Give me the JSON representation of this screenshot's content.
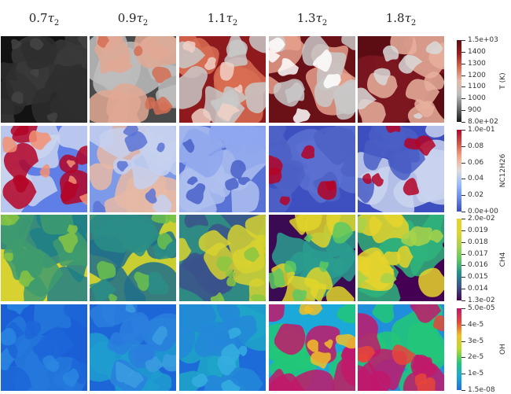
{
  "columns": [
    {
      "coef": "0.7",
      "symbol": "τ",
      "sub": "2"
    },
    {
      "coef": "0.9",
      "symbol": "τ",
      "sub": "2"
    },
    {
      "coef": "1.1",
      "symbol": "τ",
      "sub": "2"
    },
    {
      "coef": "1.3",
      "symbol": "τ",
      "sub": "2"
    },
    {
      "coef": "1.8",
      "symbol": "τ",
      "sub": "2"
    }
  ],
  "rows": [
    {
      "variable": "T (K)",
      "colormap": [
        "#1a1a1a",
        "#6b6b6b",
        "#bdbdbd",
        "#e8b8a6",
        "#d96b50",
        "#a31a1e",
        "#5c0d14"
      ],
      "ticks": [
        "1.5e+03",
        "1400",
        "1300",
        "1200",
        "1100",
        "1000",
        "900",
        "8.0e+02"
      ],
      "panels": [
        {
          "base": "#121212",
          "blob": "#2e2e2e",
          "blob2": "#3a3a3a",
          "hl": "#444444"
        },
        {
          "base": "#4a4a4a",
          "blob": "#e0a894",
          "blob2": "#bdbdbd",
          "hl": "#d36f55"
        },
        {
          "base": "#8e1a1e",
          "blob": "#c9c9c9",
          "blob2": "#d86d52",
          "hl": "#f0d0c4"
        },
        {
          "base": "#6a1017",
          "blob": "#c8c8c8",
          "blob2": "#e6a08c",
          "hl": "#ffffff"
        },
        {
          "base": "#5c0d14",
          "blob": "#e7b09c",
          "blob2": "#7d1820",
          "hl": "#d9d9d9"
        }
      ]
    },
    {
      "variable": "NC12H26",
      "colormap": [
        "#3b4cc0",
        "#6788ee",
        "#9abbff",
        "#dddddd",
        "#f7a889",
        "#d65244",
        "#b40426"
      ],
      "ticks": [
        "1.0e-01",
        "0.08",
        "0.06",
        "0.04",
        "0.02",
        "0.0e+00"
      ],
      "panels": [
        {
          "base": "#5f7ee6",
          "blob": "#b40426",
          "blob2": "#c9d3ee",
          "hl": "#f29072"
        },
        {
          "base": "#7d9ae8",
          "blob": "#c6d0ee",
          "blob2": "#e6b9a6",
          "hl": "#5b73d6"
        },
        {
          "base": "#5872d6",
          "blob": "#8fa7ee",
          "blob2": "#aebfef",
          "hl": "#4a61c9"
        },
        {
          "base": "#3e50bf",
          "blob": "#4d62c6",
          "blob2": "#5a70d0",
          "hl": "#b40426"
        },
        {
          "base": "#3c4ec0",
          "blob": "#4a5ec6",
          "blob2": "#c9d3ee",
          "hl": "#b40426"
        }
      ]
    },
    {
      "variable": "CH4",
      "colormap": [
        "#440154",
        "#3b528b",
        "#21918c",
        "#5ec962",
        "#a8d24a",
        "#e0d52a",
        "#e9d32a"
      ],
      "ticks": [
        "2.0e-02",
        "0.019",
        "0.018",
        "0.017",
        "0.016",
        "0.015",
        "0.014",
        "1.3e-02"
      ],
      "panels": [
        {
          "base": "#d8d231",
          "blob": "#3e9b6e",
          "blob2": "#1f7f87",
          "hl": "#88c443"
        },
        {
          "base": "#c9cf32",
          "blob": "#2a8d86",
          "blob2": "#1f6f8b",
          "hl": "#6cbf4c"
        },
        {
          "base": "#2e8a82",
          "blob": "#d7d230",
          "blob2": "#3b528b",
          "hl": "#8ac742"
        },
        {
          "base": "#3a0a52",
          "blob": "#e0d52a",
          "blob2": "#2a9d8f",
          "hl": "#5ec962"
        },
        {
          "base": "#440154",
          "blob": "#e6d42c",
          "blob2": "#2fb47c",
          "hl": "#a8d24a"
        }
      ]
    },
    {
      "variable": "OH",
      "colormap": [
        "#1f6fdc",
        "#17a8d8",
        "#22c777",
        "#b7d92c",
        "#f1c028",
        "#e8443a",
        "#c2186b"
      ],
      "ticks": [
        "5.0e-05",
        "4e-5",
        "3e-5",
        "2e-5",
        "1e-5",
        "1.5e-08"
      ],
      "panels": [
        {
          "base": "#1a5fd6",
          "blob": "#1c66d8",
          "blob2": "#2478dc",
          "hl": "#2a86e0"
        },
        {
          "base": "#1c66d8",
          "blob": "#2a7fde",
          "blob2": "#1f9ed0",
          "hl": "#3b9ee0"
        },
        {
          "base": "#1d6bd9",
          "blob": "#2388d8",
          "blob2": "#1fa6c8",
          "hl": "#35aee0"
        },
        {
          "base": "#1aa9d8",
          "blob": "#c2186b",
          "blob2": "#22c777",
          "hl": "#f1c028"
        },
        {
          "base": "#1f8fdb",
          "blob": "#c2186b",
          "blob2": "#22c777",
          "hl": "#e8443a"
        }
      ]
    }
  ]
}
